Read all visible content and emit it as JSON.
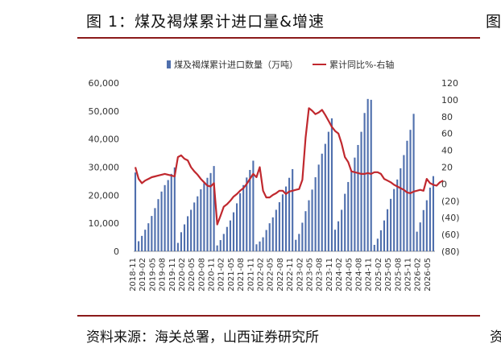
{
  "header": {
    "title": "图 1：煤及褐煤累计进口量&增速",
    "right_clip": "图"
  },
  "footer": {
    "source": "资料来源：海关总署，山西证券研究所",
    "right_clip": "资"
  },
  "chart_data": {
    "type": "bar+line",
    "legend": {
      "placement": "top-center",
      "items": [
        "煤及褐煤累计进口数量（万吨）",
        "累计同比%-右轴"
      ]
    },
    "colors": {
      "bar": "#4f6fad",
      "line": "#c0282e"
    },
    "y_left": {
      "ticks": [
        "0",
        "10,000",
        "20,000",
        "30,000",
        "40,000",
        "50,000",
        "60,000"
      ],
      "range": [
        0,
        60000
      ]
    },
    "y_right": {
      "ticks": [
        "(80)",
        "(60)",
        "(40)",
        "(20)",
        "0",
        "20",
        "40",
        "60",
        "80",
        "100",
        "120"
      ],
      "range": [
        -80,
        120
      ]
    },
    "x_tick_labels": [
      "2018-11",
      "2019-02",
      "2019-05",
      "2019-08",
      "2019-11",
      "2020-02",
      "2020-05",
      "2020-08",
      "2020-11",
      "2021-02",
      "2021-05",
      "2021-08",
      "2021-11",
      "2022-02",
      "2022-05",
      "2022-08",
      "2022-11",
      "2023-02",
      "2023-05",
      "2023-08",
      "2023-11",
      "2024-02",
      "2024-05",
      "2024-08",
      "2024-11",
      "2025-02",
      "2025-05",
      "2025-08",
      "2025-11",
      "2026-02",
      "2026-05"
    ],
    "start_month": "2018-12",
    "series": [
      {
        "name": "煤及褐煤累计进口数量（万吨）",
        "kind": "bar",
        "values": [
          28100,
          3600,
          5500,
          7700,
          10000,
          12600,
          15400,
          18600,
          21300,
          23600,
          25400,
          27600,
          29900,
          3000,
          6800,
          9600,
          12500,
          14800,
          17400,
          19600,
          22100,
          24300,
          26200,
          27900,
          30400,
          2100,
          4000,
          6200,
          8700,
          11000,
          13900,
          17100,
          20700,
          23600,
          26300,
          29000,
          32300,
          2500,
          3500,
          5000,
          7600,
          10000,
          12100,
          14800,
          17500,
          20300,
          23100,
          26200,
          29300,
          4100,
          6200,
          10200,
          14300,
          18200,
          22000,
          26400,
          30900,
          34800,
          38300,
          42600,
          47400,
          7700,
          10700,
          14800,
          20500,
          24700,
          28700,
          33400,
          37900,
          42600,
          49300,
          54300,
          54000,
          2300,
          4500,
          7500,
          11000,
          15000,
          18700,
          22200,
          25600,
          29600,
          34300,
          39400,
          43300,
          49000,
          7000,
          10300,
          14700,
          18200,
          22700,
          26800
        ]
      },
      {
        "name": "累计同比%-右轴",
        "kind": "line",
        "axis": "right",
        "values": [
          20,
          6,
          1,
          4,
          6,
          8,
          9,
          10,
          11,
          12,
          11,
          10,
          9,
          32,
          34,
          30,
          28,
          20,
          15,
          11,
          6,
          2,
          -2,
          -3,
          1,
          -48,
          -38,
          -27,
          -24,
          -20,
          -15,
          -12,
          -8,
          -5,
          0,
          6,
          12,
          8,
          20,
          -8,
          -16,
          -16,
          -13,
          -11,
          -8,
          -8,
          -12,
          -9,
          -8,
          -7,
          -6,
          5,
          55,
          90,
          87,
          83,
          85,
          88,
          82,
          75,
          68,
          63,
          60,
          48,
          32,
          26,
          15,
          14,
          13,
          12,
          12,
          13,
          12,
          14,
          14,
          12,
          6,
          4,
          2,
          -1,
          -3,
          -5,
          -7,
          -10,
          -11,
          -9,
          -8,
          -7,
          -8,
          6,
          1,
          -1,
          -2,
          2,
          4
        ]
      }
    ]
  }
}
